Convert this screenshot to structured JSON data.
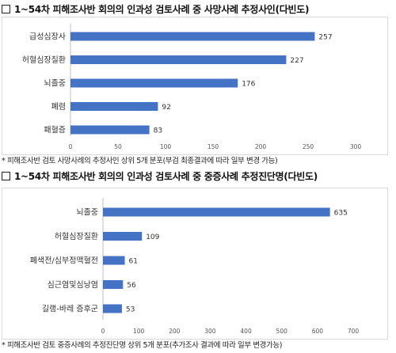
{
  "chart_data": [
    {
      "type": "bar",
      "orientation": "horizontal",
      "title": "1~54차 피해조사반 회의의 인과성 검토사례 중 사망사례 추정사인(다빈도)",
      "categories": [
        "급성심장사",
        "허혈심장질환",
        "뇌졸중",
        "폐렴",
        "패혈증"
      ],
      "values": [
        257,
        227,
        176,
        92,
        83
      ],
      "xlim": [
        0,
        300
      ],
      "xticks": [
        0,
        50,
        100,
        150,
        200,
        250,
        300
      ],
      "grid": false,
      "bar_color": "#4472c4",
      "note": "* 피해조사반 검토 사망사례의 추정사인 상위 5개 분포(부검 최종결과에 따라 일부 변경 가능)"
    },
    {
      "type": "bar",
      "orientation": "horizontal",
      "title": "1~54차 피해조사반 회의의 인과성 검토사례 중 중증사례 추정진단명(다빈도)",
      "categories": [
        "뇌졸중",
        "허혈심장질환",
        "폐색전/심부정맥혈전",
        "심근염및심낭염",
        "길랭-바레 증후군"
      ],
      "values": [
        635,
        109,
        61,
        56,
        53
      ],
      "xlim": [
        0,
        700
      ],
      "xticks": [
        0,
        100,
        200,
        300,
        400,
        500,
        600,
        700
      ],
      "grid": false,
      "bar_color": "#4472c4",
      "note": "* 피해조사반 검토 중증사례의 추정진단명 상위 5개 분포(추가조사 결과에 따라 일부 변경가능)"
    }
  ]
}
